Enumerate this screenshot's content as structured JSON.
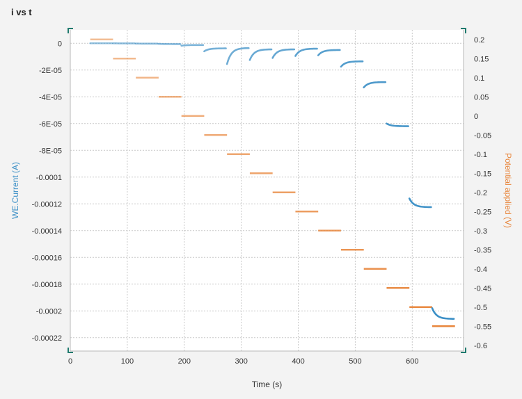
{
  "title": "i vs t",
  "chart_data": {
    "type": "scatter",
    "title": "i vs t",
    "xlabel": "Time (s)",
    "ylabel_left": "WE.Current (A)",
    "ylabel_right": "Potential applied (V)",
    "xlim": [
      0,
      690
    ],
    "ylim_left": [
      -0.00023,
      1e-05
    ],
    "ylim_right": [
      -0.615,
      0.225
    ],
    "x_ticks": [
      0,
      100,
      200,
      300,
      400,
      500,
      600
    ],
    "x_tick_labels": [
      "0",
      "100",
      "200",
      "300",
      "400",
      "500",
      "600"
    ],
    "y_left_ticks": [
      0,
      -2e-05,
      -4e-05,
      -6e-05,
      -8e-05,
      -0.0001,
      -0.00012,
      -0.00014,
      -0.00016,
      -0.00018,
      -0.0002,
      -0.00022
    ],
    "y_left_tick_labels": [
      "0",
      "-2E-05",
      "-4E-05",
      "-6E-05",
      "-8E-05",
      "-0.0001",
      "-0.00012",
      "-0.00014",
      "-0.00016",
      "-0.00018",
      "-0.0002",
      "-0.00022"
    ],
    "y_right_ticks": [
      0.2,
      0.15,
      0.1,
      0.05,
      0,
      -0.05,
      -0.1,
      -0.15,
      -0.2,
      -0.25,
      -0.3,
      -0.35,
      -0.4,
      -0.45,
      -0.5,
      -0.55,
      -0.6
    ],
    "y_right_tick_labels": [
      "0.2",
      "0.15",
      "0.1",
      "0.05",
      "0",
      "-0.05",
      "-0.1",
      "-0.15",
      "-0.2",
      "-0.25",
      "-0.3",
      "-0.35",
      "-0.4",
      "-0.45",
      "-0.5",
      "-0.55",
      "-0.6"
    ],
    "grid": true,
    "colors": {
      "current": "#3b8fc6",
      "potential": "#e8863c",
      "grid": "#c9c9c9",
      "axis_marker": "#1f7a6e"
    },
    "series": [
      {
        "name": "WE.Current (A)",
        "axis": "left",
        "segments": [
          {
            "t_start": 35,
            "t_end": 73,
            "i_start": 0,
            "i_end": 0
          },
          {
            "t_start": 75,
            "t_end": 113,
            "i_start": 0,
            "i_end": -1e-07
          },
          {
            "t_start": 115,
            "t_end": 153,
            "i_start": -2e-07,
            "i_end": -3e-07
          },
          {
            "t_start": 155,
            "t_end": 193,
            "i_start": -4e-07,
            "i_end": -6e-07
          },
          {
            "t_start": 195,
            "t_end": 233,
            "i_start": -1.8e-06,
            "i_end": -1.3e-06
          },
          {
            "t_start": 235,
            "t_end": 273,
            "i_start": -6e-06,
            "i_end": -3.8e-06
          },
          {
            "t_start": 275,
            "t_end": 313,
            "i_start": -1.55e-05,
            "i_end": -3.5e-06
          },
          {
            "t_start": 315,
            "t_end": 353,
            "i_start": -1.25e-05,
            "i_end": -4.5e-06
          },
          {
            "t_start": 355,
            "t_end": 393,
            "i_start": -1.1e-05,
            "i_end": -4.5e-06
          },
          {
            "t_start": 395,
            "t_end": 433,
            "i_start": -9.5e-06,
            "i_end": -4e-06
          },
          {
            "t_start": 435,
            "t_end": 473,
            "i_start": -9e-06,
            "i_end": -5e-06
          },
          {
            "t_start": 475,
            "t_end": 513,
            "i_start": -1.75e-05,
            "i_end": -1.35e-05
          },
          {
            "t_start": 515,
            "t_end": 553,
            "i_start": -3.3e-05,
            "i_end": -2.9e-05
          },
          {
            "t_start": 555,
            "t_end": 593,
            "i_start": -6e-05,
            "i_end": -6.2e-05
          },
          {
            "t_start": 595,
            "t_end": 633,
            "i_start": -0.000116,
            "i_end": -0.0001225
          },
          {
            "t_start": 635,
            "t_end": 673,
            "i_start": -0.000198,
            "i_end": -0.000206
          }
        ]
      },
      {
        "name": "Potential applied (V)",
        "axis": "right",
        "segments": [
          {
            "t_start": 35,
            "t_end": 75,
            "v": 0.2
          },
          {
            "t_start": 75,
            "t_end": 115,
            "v": 0.15
          },
          {
            "t_start": 115,
            "t_end": 155,
            "v": 0.1
          },
          {
            "t_start": 155,
            "t_end": 195,
            "v": 0.05
          },
          {
            "t_start": 195,
            "t_end": 235,
            "v": 0
          },
          {
            "t_start": 235,
            "t_end": 275,
            "v": -0.05
          },
          {
            "t_start": 275,
            "t_end": 315,
            "v": -0.1
          },
          {
            "t_start": 315,
            "t_end": 355,
            "v": -0.15
          },
          {
            "t_start": 355,
            "t_end": 395,
            "v": -0.2
          },
          {
            "t_start": 395,
            "t_end": 435,
            "v": -0.25
          },
          {
            "t_start": 435,
            "t_end": 475,
            "v": -0.3
          },
          {
            "t_start": 475,
            "t_end": 515,
            "v": -0.35
          },
          {
            "t_start": 515,
            "t_end": 555,
            "v": -0.4
          },
          {
            "t_start": 555,
            "t_end": 595,
            "v": -0.45
          },
          {
            "t_start": 595,
            "t_end": 635,
            "v": -0.5
          },
          {
            "t_start": 635,
            "t_end": 675,
            "v": -0.55
          }
        ]
      }
    ]
  }
}
